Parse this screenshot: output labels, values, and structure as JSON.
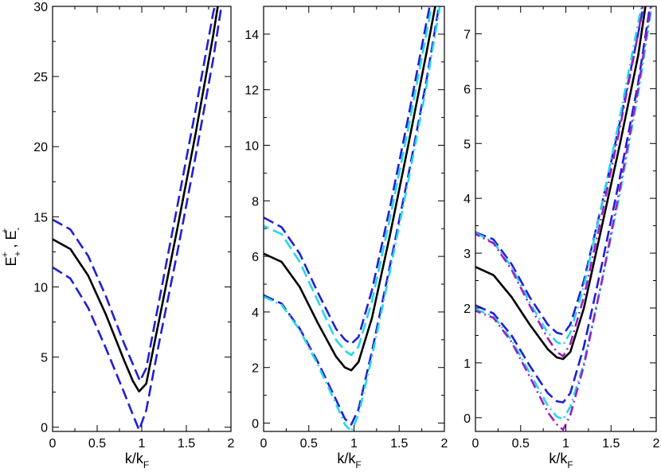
{
  "chart_data": [
    {
      "type": "line",
      "panel": "left",
      "xlabel": {
        "main": "k/k",
        "sub": "F"
      },
      "ylabel": {
        "a": "E",
        "a_sub": "+",
        "a_sup": "+",
        "sep": " , ",
        "b": "E",
        "b_sub": "-",
        "b_sup": "+"
      },
      "xlim": [
        0,
        2
      ],
      "ylim": [
        -0.3,
        30
      ],
      "x_ticks": [
        "0",
        "0.5",
        "1",
        "1.5",
        "2"
      ],
      "x_tick_values": [
        0,
        0.5,
        1,
        1.5,
        2
      ],
      "y_ticks": [
        "0",
        "5",
        "10",
        "15",
        "20",
        "25",
        "30"
      ],
      "y_tick_values": [
        0,
        5,
        10,
        15,
        20,
        25,
        30
      ],
      "series": [
        {
          "color": "#000000",
          "dash": "solid",
          "offset": 0,
          "points": [
            [
              0,
              13.4
            ],
            [
              0.2,
              12.7
            ],
            [
              0.4,
              10.8
            ],
            [
              0.6,
              8.0
            ],
            [
              0.8,
              4.8
            ],
            [
              0.9,
              3.3
            ],
            [
              0.97,
              2.55
            ],
            [
              1.05,
              3.1
            ],
            [
              1.2,
              7.8
            ],
            [
              1.4,
              14.2
            ],
            [
              1.6,
              20.8
            ],
            [
              1.8,
              27.9
            ],
            [
              1.86,
              30.3
            ]
          ]
        },
        {
          "color": "#1f1fd6",
          "dash": "dashed",
          "offset": 0,
          "points": [
            [
              0,
              14.8
            ],
            [
              0.2,
              14.1
            ],
            [
              0.4,
              12.2
            ],
            [
              0.6,
              9.3
            ],
            [
              0.8,
              6.0
            ],
            [
              0.9,
              4.5
            ],
            [
              0.98,
              3.3
            ],
            [
              1.05,
              4.2
            ],
            [
              1.2,
              9.2
            ],
            [
              1.4,
              15.8
            ],
            [
              1.6,
              22.5
            ],
            [
              1.8,
              29.5
            ],
            [
              1.83,
              30.3
            ]
          ]
        },
        {
          "color": "#1f1fd6",
          "dash": "dashed",
          "offset": 0,
          "points": [
            [
              0,
              11.4
            ],
            [
              0.2,
              10.6
            ],
            [
              0.4,
              8.5
            ],
            [
              0.6,
              5.6
            ],
            [
              0.8,
              2.5
            ],
            [
              0.9,
              0.9
            ],
            [
              0.97,
              -0.2
            ],
            [
              1.05,
              1.2
            ],
            [
              1.2,
              6.2
            ],
            [
              1.4,
              12.5
            ],
            [
              1.6,
              19.2
            ],
            [
              1.8,
              26.2
            ],
            [
              1.9,
              30.3
            ]
          ]
        }
      ]
    },
    {
      "type": "line",
      "panel": "middle",
      "xlabel": {
        "main": "k/k",
        "sub": "F"
      },
      "xlim": [
        0,
        2
      ],
      "ylim": [
        -0.3,
        15
      ],
      "x_ticks": [
        "0",
        "0.5",
        "1",
        "1.5",
        "2"
      ],
      "x_tick_values": [
        0,
        0.5,
        1,
        1.5,
        2
      ],
      "y_ticks": [
        "0",
        "2",
        "4",
        "6",
        "8",
        "10",
        "12",
        "14"
      ],
      "y_tick_values": [
        0,
        2,
        4,
        6,
        8,
        10,
        12,
        14
      ],
      "series": [
        {
          "color": "#000000",
          "dash": "solid",
          "offset": 0,
          "points": [
            [
              0,
              6.1
            ],
            [
              0.2,
              5.8
            ],
            [
              0.4,
              4.9
            ],
            [
              0.6,
              3.6
            ],
            [
              0.8,
              2.4
            ],
            [
              0.9,
              2.0
            ],
            [
              0.97,
              1.9
            ],
            [
              1.05,
              2.2
            ],
            [
              1.2,
              3.8
            ],
            [
              1.4,
              6.8
            ],
            [
              1.6,
              10.0
            ],
            [
              1.8,
              13.3
            ],
            [
              1.91,
              15.2
            ]
          ]
        },
        {
          "color": "#1f1fd6",
          "dash": "dashed",
          "offset": 0,
          "points": [
            [
              0,
              7.4
            ],
            [
              0.2,
              7.05
            ],
            [
              0.4,
              6.1
            ],
            [
              0.6,
              4.7
            ],
            [
              0.8,
              3.4
            ],
            [
              0.9,
              3.0
            ],
            [
              0.97,
              2.85
            ],
            [
              1.05,
              3.1
            ],
            [
              1.2,
              4.8
            ],
            [
              1.4,
              7.8
            ],
            [
              1.6,
              11.0
            ],
            [
              1.8,
              14.4
            ],
            [
              1.85,
              15.2
            ]
          ]
        },
        {
          "color": "#22d8e8",
          "dash": "dashed",
          "offset": 7,
          "points": [
            [
              0,
              7.1
            ],
            [
              0.2,
              6.8
            ],
            [
              0.4,
              5.8
            ],
            [
              0.6,
              4.4
            ],
            [
              0.8,
              3.0
            ],
            [
              0.9,
              2.6
            ],
            [
              0.97,
              2.45
            ],
            [
              1.05,
              2.75
            ],
            [
              1.2,
              4.4
            ],
            [
              1.4,
              7.4
            ],
            [
              1.6,
              10.6
            ],
            [
              1.8,
              14.0
            ],
            [
              1.87,
              15.2
            ]
          ]
        },
        {
          "color": "#1f1fd6",
          "dash": "dashed",
          "offset": 0,
          "points": [
            [
              0,
              4.6
            ],
            [
              0.2,
              4.3
            ],
            [
              0.4,
              3.4
            ],
            [
              0.6,
              2.2
            ],
            [
              0.8,
              0.85
            ],
            [
              0.9,
              0.15
            ],
            [
              0.97,
              -0.05
            ],
            [
              1.05,
              0.5
            ],
            [
              1.2,
              2.6
            ],
            [
              1.4,
              5.7
            ],
            [
              1.6,
              8.9
            ],
            [
              1.8,
              12.3
            ],
            [
              1.95,
              15.2
            ]
          ]
        },
        {
          "color": "#22d8e8",
          "dash": "dashdot",
          "offset": 0,
          "points": [
            [
              0,
              4.55
            ],
            [
              0.2,
              4.25
            ],
            [
              0.4,
              3.35
            ],
            [
              0.6,
              2.1
            ],
            [
              0.8,
              0.7
            ],
            [
              0.9,
              -0.05
            ],
            [
              0.97,
              -0.3
            ],
            [
              1.05,
              0.3
            ],
            [
              1.2,
              2.4
            ],
            [
              1.4,
              5.5
            ],
            [
              1.6,
              8.7
            ],
            [
              1.8,
              12.1
            ],
            [
              1.96,
              15.2
            ]
          ]
        }
      ]
    },
    {
      "type": "line",
      "panel": "right",
      "xlabel": {
        "main": "k/k",
        "sub": "F"
      },
      "xlim": [
        0,
        2
      ],
      "ylim": [
        -0.25,
        7.5
      ],
      "x_ticks": [
        "0",
        "0.5",
        "1",
        "1.5",
        "2"
      ],
      "x_tick_values": [
        0,
        0.5,
        1,
        1.5,
        2
      ],
      "y_ticks": [
        "0",
        "1",
        "2",
        "3",
        "4",
        "5",
        "6",
        "7"
      ],
      "y_tick_values": [
        0,
        1,
        2,
        3,
        4,
        5,
        6,
        7
      ],
      "series": [
        {
          "color": "#000000",
          "dash": "solid",
          "offset": 0,
          "points": [
            [
              0,
              2.75
            ],
            [
              0.2,
              2.6
            ],
            [
              0.4,
              2.2
            ],
            [
              0.6,
              1.7
            ],
            [
              0.8,
              1.25
            ],
            [
              0.9,
              1.1
            ],
            [
              0.97,
              1.07
            ],
            [
              1.05,
              1.2
            ],
            [
              1.2,
              2.0
            ],
            [
              1.4,
              3.5
            ],
            [
              1.6,
              5.0
            ],
            [
              1.8,
              6.6
            ],
            [
              1.89,
              7.6
            ]
          ]
        },
        {
          "color": "#1f1fd6",
          "dash": "dashed",
          "offset": 0,
          "points": [
            [
              0,
              3.38
            ],
            [
              0.2,
              3.25
            ],
            [
              0.4,
              2.8
            ],
            [
              0.6,
              2.2
            ],
            [
              0.8,
              1.7
            ],
            [
              0.9,
              1.55
            ],
            [
              0.97,
              1.52
            ],
            [
              1.05,
              1.7
            ],
            [
              1.2,
              2.5
            ],
            [
              1.4,
              3.9
            ],
            [
              1.6,
              5.4
            ],
            [
              1.8,
              7.0
            ],
            [
              1.87,
              7.6
            ]
          ]
        },
        {
          "color": "#22d8e8",
          "dash": "dashdot",
          "offset": 0,
          "points": [
            [
              0,
              3.37
            ],
            [
              0.2,
              3.2
            ],
            [
              0.4,
              2.75
            ],
            [
              0.6,
              2.1
            ],
            [
              0.8,
              1.55
            ],
            [
              0.9,
              1.38
            ],
            [
              0.97,
              1.33
            ],
            [
              1.05,
              1.55
            ],
            [
              1.2,
              2.4
            ],
            [
              1.4,
              3.9
            ],
            [
              1.6,
              5.5
            ],
            [
              1.8,
              7.2
            ],
            [
              1.85,
              7.6
            ]
          ]
        },
        {
          "color": "#9a1fc4",
          "dash": "dashdot",
          "offset": 6,
          "points": [
            [
              0,
              3.35
            ],
            [
              0.2,
              3.18
            ],
            [
              0.4,
              2.7
            ],
            [
              0.6,
              2.05
            ],
            [
              0.8,
              1.45
            ],
            [
              0.9,
              1.2
            ],
            [
              0.97,
              1.12
            ],
            [
              1.05,
              1.35
            ],
            [
              1.2,
              2.2
            ],
            [
              1.4,
              3.7
            ],
            [
              1.6,
              5.3
            ],
            [
              1.8,
              7.0
            ],
            [
              1.86,
              7.6
            ]
          ]
        },
        {
          "color": "#1f1fd6",
          "dash": "dashed",
          "offset": 0,
          "points": [
            [
              0,
              2.05
            ],
            [
              0.2,
              1.9
            ],
            [
              0.4,
              1.5
            ],
            [
              0.6,
              0.95
            ],
            [
              0.8,
              0.45
            ],
            [
              0.9,
              0.3
            ],
            [
              0.97,
              0.28
            ],
            [
              1.05,
              0.45
            ],
            [
              1.2,
              1.3
            ],
            [
              1.4,
              2.8
            ],
            [
              1.6,
              4.4
            ],
            [
              1.8,
              6.1
            ],
            [
              1.94,
              7.6
            ]
          ]
        },
        {
          "color": "#22d8e8",
          "dash": "dashdot",
          "offset": 0,
          "points": [
            [
              0,
              1.98
            ],
            [
              0.2,
              1.85
            ],
            [
              0.4,
              1.42
            ],
            [
              0.6,
              0.82
            ],
            [
              0.8,
              0.22
            ],
            [
              0.9,
              0.02
            ],
            [
              0.97,
              -0.03
            ],
            [
              1.05,
              0.2
            ],
            [
              1.2,
              1.0
            ],
            [
              1.4,
              2.5
            ],
            [
              1.6,
              4.1
            ],
            [
              1.8,
              5.9
            ],
            [
              1.96,
              7.6
            ]
          ]
        },
        {
          "color": "#9a1fc4",
          "dash": "dashdot",
          "offset": 5,
          "points": [
            [
              0,
              1.95
            ],
            [
              0.2,
              1.82
            ],
            [
              0.4,
              1.38
            ],
            [
              0.6,
              0.75
            ],
            [
              0.8,
              0.1
            ],
            [
              0.9,
              -0.12
            ],
            [
              0.97,
              -0.22
            ],
            [
              1.05,
              0.05
            ],
            [
              1.2,
              0.95
            ],
            [
              1.4,
              2.5
            ],
            [
              1.6,
              4.2
            ],
            [
              1.8,
              6.0
            ],
            [
              1.95,
              7.6
            ]
          ]
        }
      ]
    }
  ]
}
